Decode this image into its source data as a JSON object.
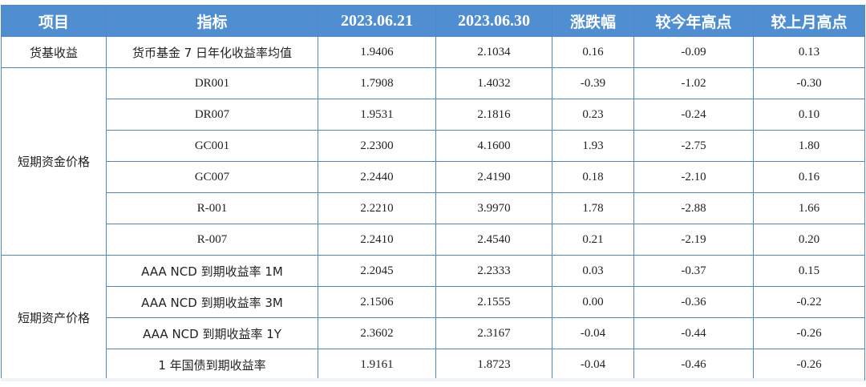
{
  "headers": [
    "项目",
    "指标",
    "2023.06.21",
    "2023.06.30",
    "涨跌幅",
    "较今年高点",
    "较上月高点"
  ],
  "groups": [
    {
      "category": "货基收益",
      "rows": [
        {
          "indicator": "货币基金 7 日年化收益率均值",
          "v1": "1.9406",
          "v2": "2.1034",
          "chg": "0.16",
          "ytd": "-0.09",
          "mtd": "0.13"
        }
      ]
    },
    {
      "category": "短期资金价格",
      "rows": [
        {
          "indicator": "DR001",
          "v1": "1.7908",
          "v2": "1.4032",
          "chg": "-0.39",
          "ytd": "-1.02",
          "mtd": "-0.30"
        },
        {
          "indicator": "DR007",
          "v1": "1.9531",
          "v2": "2.1816",
          "chg": "0.23",
          "ytd": "-0.24",
          "mtd": "0.10"
        },
        {
          "indicator": "GC001",
          "v1": "2.2300",
          "v2": "4.1600",
          "chg": "1.93",
          "ytd": "-2.75",
          "mtd": "1.80"
        },
        {
          "indicator": "GC007",
          "v1": "2.2440",
          "v2": "2.4190",
          "chg": "0.18",
          "ytd": "-2.10",
          "mtd": "0.16"
        },
        {
          "indicator": "R-001",
          "v1": "2.2210",
          "v2": "3.9970",
          "chg": "1.78",
          "ytd": "-2.88",
          "mtd": "1.66"
        },
        {
          "indicator": "R-007",
          "v1": "2.2410",
          "v2": "2.4540",
          "chg": "0.21",
          "ytd": "-2.19",
          "mtd": "0.20"
        }
      ]
    },
    {
      "category": "短期资产价格",
      "rows": [
        {
          "indicator": "AAA NCD 到期收益率 1M",
          "v1": "2.2045",
          "v2": "2.2333",
          "chg": "0.03",
          "ytd": "-0.37",
          "mtd": "0.15"
        },
        {
          "indicator": "AAA NCD 到期收益率 3M",
          "v1": "2.1506",
          "v2": "2.1555",
          "chg": "0.00",
          "ytd": "-0.36",
          "mtd": "-0.22"
        },
        {
          "indicator": "AAA NCD 到期收益率 1Y",
          "v1": "2.3602",
          "v2": "2.3167",
          "chg": "-0.04",
          "ytd": "-0.44",
          "mtd": "-0.26"
        },
        {
          "indicator": "1 年国债到期收益率",
          "v1": "1.9161",
          "v2": "1.8723",
          "chg": "-0.04",
          "ytd": "-0.46",
          "mtd": "-0.26"
        }
      ]
    }
  ],
  "colors": {
    "header_bg": "#4f8ed0",
    "border": "#4f86c6",
    "positive": "#e0322b",
    "negative": "#1f9a4a"
  }
}
